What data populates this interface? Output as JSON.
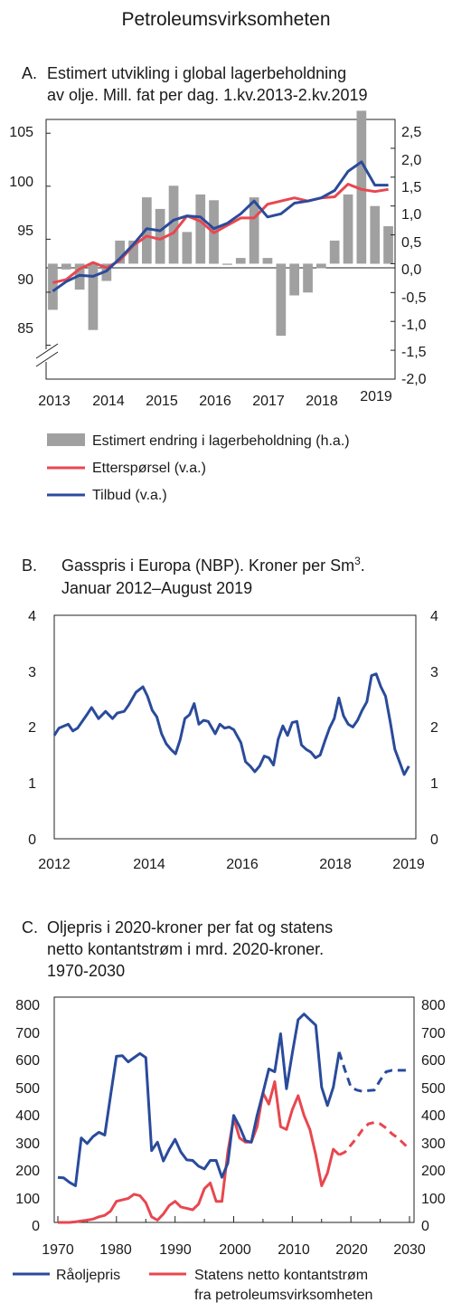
{
  "page_title": "Petroleumsvirksomheten",
  "colors": {
    "demand": "#e8474f",
    "supply": "#2a4b9b",
    "bars": "#a0a0a0",
    "gas": "#2a4b9b"
  },
  "panels": {
    "a": {
      "label": "A.",
      "title_line1": "Estimert utvikling i global lagerbeholdning",
      "title_line2": "av olje. Mill. fat per dag. 1.kv.2013-2.kv.2019",
      "x_ticks": [
        "2013",
        "2014",
        "2015",
        "2016",
        "2017",
        "2018",
        "2019"
      ],
      "y_left_ticks": [
        "105",
        "100",
        "95",
        "90",
        "85"
      ],
      "y_right_ticks": [
        "2,5",
        "2,0",
        "1,5",
        "1,0",
        "0,5",
        "0,0",
        "-0,5",
        "-1,0",
        "-1,5",
        "-2,0"
      ],
      "legend": [
        {
          "label": "Estimert endring i lagerbeholdning (h.a.)",
          "kind": "bar"
        },
        {
          "label": "Etterspørsel (v.a.)",
          "kind": "line-demand"
        },
        {
          "label": "Tilbud (v.a.)",
          "kind": "line-supply"
        }
      ]
    },
    "b": {
      "label": "B.",
      "title_line1": "Gasspris i Europa (NBP). Kroner per Sm",
      "title_sup": "3",
      "title_line1_end": ".",
      "title_line2": "Januar 2012–August 2019",
      "x_ticks": [
        "2012",
        "2014",
        "2016",
        "2018",
        "2019"
      ],
      "y_ticks": [
        "4",
        "3",
        "2",
        "1",
        "0"
      ]
    },
    "c": {
      "label": "C.",
      "title_line1": "Oljepris i 2020-kroner per fat og statens",
      "title_line2": "netto kontantstrøm i mrd. 2020-kroner.",
      "title_line3": "1970-2030",
      "x_ticks": [
        "1970",
        "1980",
        "1990",
        "2000",
        "2010",
        "2020",
        "2030"
      ],
      "y_ticks": [
        "800",
        "700",
        "600",
        "500",
        "400",
        "300",
        "200",
        "100",
        "0"
      ],
      "legend_oil": "Råoljepris",
      "legend_cash_line1": "Statens netto kontantstrøm",
      "legend_cash_line2": "fra petroleumsvirksomheten"
    }
  },
  "chart_data": [
    {
      "type": "bar+line",
      "x": [
        "2013-Q1",
        "2013-Q2",
        "2013-Q3",
        "2013-Q4",
        "2014-Q1",
        "2014-Q2",
        "2014-Q3",
        "2014-Q4",
        "2015-Q1",
        "2015-Q2",
        "2015-Q3",
        "2015-Q4",
        "2016-Q1",
        "2016-Q2",
        "2016-Q3",
        "2016-Q4",
        "2017-Q1",
        "2017-Q2",
        "2017-Q3",
        "2017-Q4",
        "2018-Q1",
        "2018-Q2",
        "2018-Q3",
        "2018-Q4",
        "2019-Q1",
        "2019-Q2"
      ],
      "series": [
        {
          "name": "Estimert endring i lagerbeholdning (h.a.)",
          "axis": "right",
          "kind": "bar",
          "values": [
            -0.8,
            -0.1,
            -0.45,
            -1.15,
            -0.3,
            0.4,
            0.4,
            1.15,
            0.95,
            1.35,
            0.55,
            1.2,
            1.1,
            -0.02,
            0.1,
            1.15,
            0.1,
            -1.25,
            -0.55,
            -0.5,
            -0.08,
            0.4,
            1.2,
            2.65,
            1.0,
            0.65
          ]
        },
        {
          "name": "Etterspørsel (v.a.)",
          "axis": "left",
          "kind": "line",
          "values": [
            90.9,
            91.2,
            92.2,
            92.8,
            92.3,
            93.0,
            94.4,
            95.3,
            95.0,
            95.6,
            97.2,
            96.7,
            95.6,
            96.3,
            97.0,
            97.0,
            98.3,
            98.6,
            98.9,
            98.6,
            98.9,
            99.0,
            100.2,
            99.7,
            99.5,
            99.7
          ]
        },
        {
          "name": "Tilbud (v.a.)",
          "axis": "left",
          "kind": "line",
          "values": [
            90.1,
            91.0,
            91.6,
            91.5,
            92.0,
            93.2,
            94.5,
            96.0,
            95.8,
            96.8,
            97.2,
            97.1,
            96.0,
            96.5,
            97.4,
            98.6,
            97.1,
            97.4,
            98.4,
            98.6,
            98.9,
            99.6,
            101.4,
            102.3,
            100.1,
            100.1
          ]
        }
      ],
      "ylim_left": [
        81.8,
        106.3
      ],
      "ylim_right": [
        -2.0,
        2.5
      ]
    },
    {
      "type": "line",
      "x": [
        2012.0,
        2012.1,
        2012.3,
        2012.4,
        2012.5,
        2012.7,
        2012.8,
        2012.95,
        2013.1,
        2013.25,
        2013.35,
        2013.5,
        2013.6,
        2013.75,
        2013.9,
        2014.0,
        2014.1,
        2014.2,
        2014.3,
        2014.4,
        2014.5,
        2014.6,
        2014.7,
        2014.8,
        2014.9,
        2015.0,
        2015.1,
        2015.2,
        2015.3,
        2015.45,
        2015.55,
        2015.65,
        2015.75,
        2015.85,
        2016.0,
        2016.1,
        2016.2,
        2016.3,
        2016.4,
        2016.5,
        2016.6,
        2016.7,
        2016.8,
        2016.9,
        2017.0,
        2017.1,
        2017.2,
        2017.3,
        2017.4,
        2017.5,
        2017.6,
        2017.7,
        2017.8,
        2017.9,
        2018.0,
        2018.1,
        2018.2,
        2018.3,
        2018.4,
        2018.5,
        2018.6,
        2018.7,
        2018.8,
        2018.9,
        2019.0,
        2019.1,
        2019.2,
        2019.3,
        2019.4,
        2019.5,
        2019.6
      ],
      "series": [
        {
          "name": "",
          "values": [
            1.85,
            1.98,
            2.05,
            1.93,
            1.98,
            2.22,
            2.35,
            2.15,
            2.28,
            2.15,
            2.25,
            2.28,
            2.4,
            2.62,
            2.72,
            2.55,
            2.3,
            2.18,
            1.88,
            1.7,
            1.6,
            1.52,
            1.78,
            2.15,
            2.22,
            2.42,
            2.05,
            2.12,
            2.1,
            1.88,
            2.05,
            1.98,
            2.0,
            1.95,
            1.72,
            1.38,
            1.3,
            1.2,
            1.3,
            1.48,
            1.45,
            1.32,
            1.78,
            2.02,
            1.85,
            2.08,
            2.1,
            1.68,
            1.6,
            1.55,
            1.45,
            1.5,
            1.75,
            1.98,
            2.15,
            2.52,
            2.2,
            2.05,
            2.0,
            2.12,
            2.3,
            2.45,
            2.92,
            2.95,
            2.72,
            2.55,
            2.1,
            1.6,
            1.38,
            1.15,
            1.3
          ]
        }
      ],
      "ylim": [
        0,
        4
      ]
    },
    {
      "type": "line",
      "x": [
        1970,
        1971,
        1972,
        1973,
        1974,
        1975,
        1976,
        1977,
        1978,
        1979,
        1980,
        1981,
        1982,
        1983,
        1984,
        1985,
        1986,
        1987,
        1988,
        1989,
        1990,
        1991,
        1992,
        1993,
        1994,
        1995,
        1996,
        1997,
        1998,
        1999,
        2000,
        2001,
        2002,
        2003,
        2004,
        2005,
        2006,
        2007,
        2008,
        2009,
        2010,
        2011,
        2012,
        2013,
        2014,
        2015,
        2016,
        2017,
        2018,
        2019,
        2020,
        2021,
        2022,
        2023,
        2024,
        2025,
        2026,
        2027,
        2028,
        2029,
        2030
      ],
      "series": [
        {
          "name": "Råoljepris",
          "kind": "historical",
          "x": [
            1970,
            1971,
            1972,
            1973,
            1974,
            1975,
            1976,
            1977,
            1978,
            1979,
            1980,
            1981,
            1982,
            1983,
            1984,
            1985,
            1986,
            1987,
            1988,
            1989,
            1990,
            1991,
            1992,
            1993,
            1994,
            1995,
            1996,
            1997,
            1998,
            1999,
            2000,
            2001,
            2002,
            2003,
            2004,
            2005,
            2006,
            2007,
            2008,
            2009,
            2010,
            2011,
            2012,
            2013,
            2014,
            2015,
            2016,
            2017,
            2018
          ],
          "values": [
            160,
            158,
            142,
            130,
            300,
            280,
            305,
            320,
            310,
            450,
            590,
            592,
            570,
            585,
            600,
            585,
            255,
            285,
            218,
            260,
            295,
            250,
            222,
            220,
            200,
            190,
            220,
            220,
            160,
            210,
            380,
            340,
            290,
            285,
            380,
            460,
            545,
            535,
            670,
            475,
            600,
            720,
            740,
            720,
            700,
            480,
            415,
            480,
            605
          ]
        },
        {
          "name": "Råoljepris",
          "kind": "projection",
          "x": [
            2018,
            2019,
            2020,
            2021,
            2022,
            2023,
            2024,
            2025,
            2026,
            2027,
            2028,
            2029,
            2030
          ],
          "values": [
            605,
            540,
            480,
            470,
            465,
            468,
            470,
            505,
            535,
            540,
            540,
            540,
            540
          ]
        },
        {
          "name": "Statens netto kontantstrøm fra petroleumsvirksomheten",
          "kind": "historical",
          "x": [
            1970,
            1971,
            1972,
            1973,
            1974,
            1975,
            1976,
            1977,
            1978,
            1979,
            1980,
            1981,
            1982,
            1983,
            1984,
            1985,
            1986,
            1987,
            1988,
            1989,
            1990,
            1991,
            1992,
            1993,
            1994,
            1995,
            1996,
            1997,
            1998,
            1999,
            2000,
            2001,
            2002,
            2003,
            2004,
            2005,
            2006,
            2007,
            2008,
            2009,
            2010,
            2011,
            2012,
            2013,
            2014,
            2015,
            2016,
            2017,
            2018
          ],
          "values": [
            0,
            0,
            0,
            2,
            5,
            8,
            12,
            20,
            25,
            40,
            75,
            80,
            85,
            100,
            95,
            70,
            20,
            8,
            30,
            60,
            75,
            55,
            50,
            45,
            65,
            120,
            140,
            75,
            75,
            250,
            370,
            300,
            285,
            285,
            340,
            460,
            420,
            500,
            340,
            330,
            400,
            450,
            380,
            330,
            240,
            130,
            175,
            260,
            240
          ]
        },
        {
          "name": "Statens netto kontantstrøm fra petroleumsvirksomheten",
          "kind": "projection",
          "x": [
            2018,
            2019,
            2020,
            2021,
            2022,
            2023,
            2024,
            2025,
            2026,
            2027,
            2028,
            2029,
            2030
          ],
          "values": [
            240,
            250,
            275,
            300,
            330,
            350,
            355,
            350,
            335,
            315,
            300,
            280,
            260
          ]
        }
      ],
      "ylim": [
        0,
        800
      ],
      "xlim": [
        1970,
        2030
      ]
    }
  ]
}
